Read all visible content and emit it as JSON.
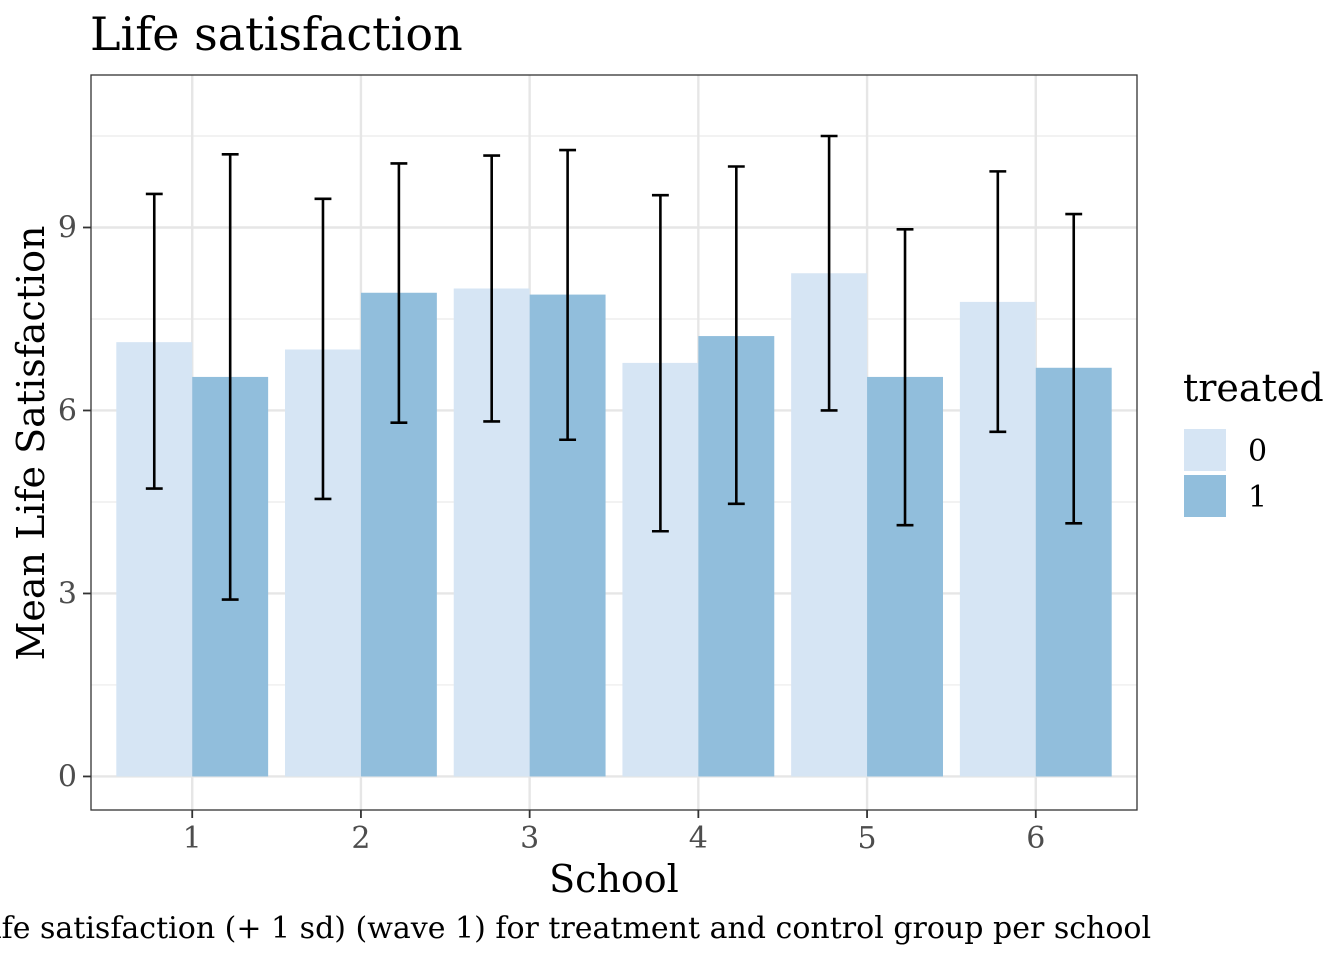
{
  "chart_data": {
    "type": "bar",
    "title": "Life satisfaction",
    "xlabel": "School",
    "ylabel": "Mean Life Satisfaction",
    "caption": "ife satisfaction (+ 1 sd) (wave 1) for treatment and control group per school",
    "categories": [
      "1",
      "2",
      "3",
      "4",
      "5",
      "6"
    ],
    "y_ticks": [
      0,
      3,
      6,
      9
    ],
    "ylim": [
      -0.55,
      11.5
    ],
    "grid": true,
    "legend": {
      "title": "treated",
      "position": "right"
    },
    "series": [
      {
        "name": "0",
        "color": "#d6e5f4",
        "values": [
          7.12,
          7.0,
          8.0,
          6.78,
          8.25,
          7.78
        ],
        "error_low": [
          4.72,
          4.55,
          5.82,
          4.02,
          6.0,
          5.65
        ],
        "error_high": [
          9.55,
          9.47,
          10.18,
          9.53,
          10.5,
          9.92
        ]
      },
      {
        "name": "1",
        "color": "#91bedc",
        "values": [
          6.55,
          7.93,
          7.9,
          7.22,
          6.55,
          6.7
        ],
        "error_low": [
          2.9,
          5.8,
          5.52,
          4.47,
          4.12,
          4.15
        ],
        "error_high": [
          10.2,
          10.05,
          10.27,
          10.0,
          8.97,
          9.22
        ]
      }
    ]
  }
}
